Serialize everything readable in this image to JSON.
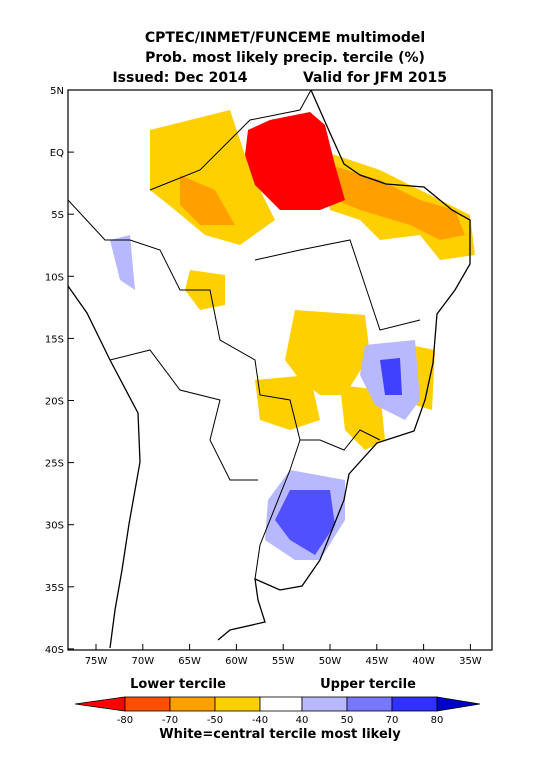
{
  "title": {
    "lines": [
      "CPTEC/INMET/FUNCEME multimodel",
      "Prob. most likely precip. tercile (%)",
      "Issued: Dec 2014",
      "Valid for JFM 2015"
    ]
  },
  "map": {
    "lat_labels": [
      "5N",
      "EQ",
      "5S",
      "10S",
      "15S",
      "20S",
      "25S",
      "30S",
      "35S",
      "40S"
    ],
    "lon_labels": [
      "75W",
      "70W",
      "65W",
      "60W",
      "55W",
      "50W",
      "45W",
      "40W",
      "35W"
    ]
  },
  "colorbar": {
    "left_label": "Lower tercile",
    "right_label": "Upper tercile",
    "ticks": [
      -80,
      -70,
      -50,
      -40,
      40,
      50,
      70,
      80
    ],
    "caption": "White=central tercile most likely"
  }
}
